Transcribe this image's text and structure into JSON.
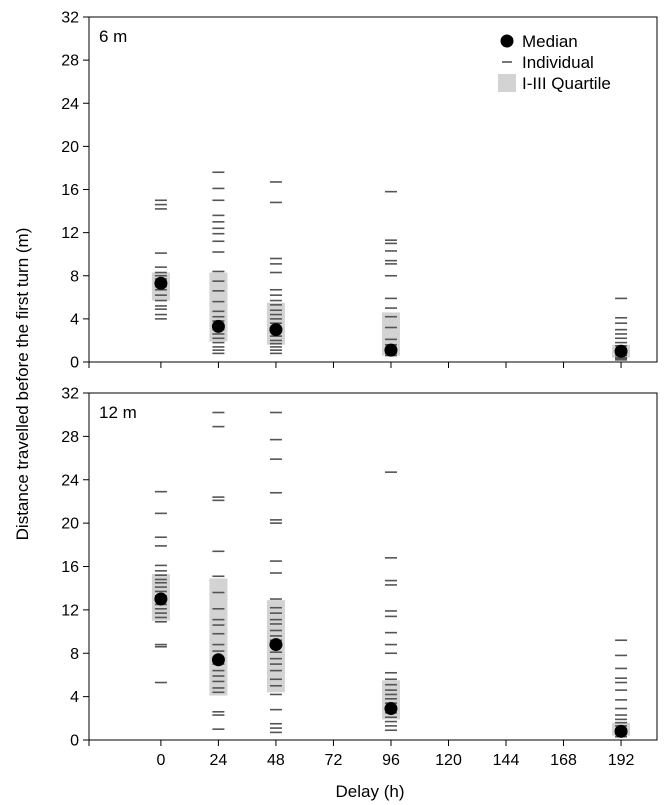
{
  "chart_data": {
    "type": "scatter",
    "xlabel": "Delay (h)",
    "ylabel": "Distance travelled before the first turn (m)",
    "x_ticks": [
      0,
      24,
      48,
      72,
      96,
      120,
      144,
      168,
      192
    ],
    "xlim": [
      -30,
      207
    ],
    "legend": {
      "placement": "top-right",
      "entries": [
        {
          "name": "Median",
          "marker": "filled-circle"
        },
        {
          "name": "Individual",
          "marker": "dash"
        },
        {
          "name": "I-III Quartile",
          "marker": "gray-box"
        }
      ]
    },
    "colors": {
      "median": "#000000",
      "individual": "#555555",
      "quartile": "#d3d3d3"
    },
    "panels": [
      {
        "label": "6 m",
        "ylim": [
          0,
          32
        ],
        "y_ticks": [
          0,
          4,
          8,
          12,
          16,
          20,
          24,
          28,
          32
        ],
        "groups": [
          {
            "x": 0,
            "median": 7.3,
            "q1": 5.7,
            "q3": 8.3,
            "individuals": [
              15.0,
              14.6,
              14.2,
              10.1,
              8.8,
              8.3,
              8.0,
              7.7,
              7.4,
              7.0,
              6.7,
              6.2,
              5.7,
              5.2,
              4.9,
              4.4,
              4.0
            ]
          },
          {
            "x": 24,
            "median": 3.3,
            "q1": 1.9,
            "q3": 8.3,
            "individuals": [
              17.6,
              16.1,
              15.0,
              13.6,
              13.0,
              12.4,
              11.9,
              11.2,
              10.2,
              8.4,
              7.5,
              6.6,
              5.6,
              4.7,
              4.2,
              3.8,
              3.4,
              3.0,
              2.6,
              2.2,
              1.8,
              1.4,
              1.1,
              0.8
            ]
          },
          {
            "x": 48,
            "median": 3.0,
            "q1": 1.6,
            "q3": 5.5,
            "individuals": [
              16.7,
              14.8,
              9.6,
              9.1,
              8.3,
              6.7,
              6.2,
              5.7,
              5.3,
              4.8,
              4.4,
              4.0,
              3.6,
              3.2,
              2.8,
              2.4,
              2.0,
              1.7,
              1.4,
              1.1,
              0.8
            ]
          },
          {
            "x": 96,
            "median": 1.1,
            "q1": 0.6,
            "q3": 4.6,
            "individuals": [
              15.8,
              11.3,
              11.0,
              10.3,
              9.4,
              9.1,
              8.0,
              5.9,
              5.0,
              4.2,
              3.2,
              2.1,
              1.6,
              1.3,
              1.0,
              0.8,
              0.6
            ]
          },
          {
            "x": 192,
            "median": 1.0,
            "q1": 0.4,
            "q3": 1.6,
            "individuals": [
              5.9,
              4.1,
              3.6,
              3.0,
              2.6,
              2.2,
              1.8,
              1.5,
              1.2,
              1.0,
              0.8,
              0.6,
              0.4,
              0.3,
              0.2
            ]
          }
        ]
      },
      {
        "label": "12 m",
        "ylim": [
          0,
          32
        ],
        "y_ticks": [
          0,
          4,
          8,
          12,
          16,
          20,
          24,
          28,
          32
        ],
        "groups": [
          {
            "x": 0,
            "median": 13.0,
            "q1": 11.0,
            "q3": 15.3,
            "individuals": [
              22.9,
              20.9,
              18.7,
              17.9,
              16.1,
              15.6,
              15.2,
              14.8,
              14.5,
              14.1,
              13.7,
              13.3,
              12.9,
              12.5,
              12.1,
              11.7,
              11.3,
              10.9,
              8.8,
              8.6,
              5.3
            ]
          },
          {
            "x": 24,
            "median": 7.4,
            "q1": 4.1,
            "q3": 14.9,
            "individuals": [
              30.2,
              28.9,
              22.4,
              22.1,
              17.4,
              15.1,
              13.6,
              12.1,
              11.1,
              10.6,
              9.8,
              8.8,
              8.2,
              7.6,
              7.0,
              6.4,
              5.9,
              5.4,
              4.8,
              4.4,
              2.6,
              2.3,
              1.0
            ]
          },
          {
            "x": 48,
            "median": 8.8,
            "q1": 4.4,
            "q3": 12.9,
            "individuals": [
              30.2,
              27.7,
              25.9,
              22.8,
              20.3,
              20.0,
              16.5,
              15.4,
              13.0,
              12.2,
              11.7,
              11.1,
              10.7,
              10.1,
              9.6,
              9.2,
              8.7,
              8.1,
              7.5,
              7.0,
              6.4,
              5.6,
              5.0,
              4.2,
              2.8,
              1.5,
              1.1,
              0.7
            ]
          },
          {
            "x": 96,
            "median": 2.9,
            "q1": 1.9,
            "q3": 5.5,
            "individuals": [
              24.7,
              16.8,
              14.7,
              14.3,
              11.9,
              11.4,
              9.9,
              8.8,
              8.0,
              6.2,
              5.6,
              5.1,
              4.6,
              4.2,
              3.8,
              3.4,
              3.0,
              2.5,
              2.1,
              1.7,
              1.3,
              0.9
            ]
          },
          {
            "x": 192,
            "median": 0.8,
            "q1": 0.4,
            "q3": 1.6,
            "individuals": [
              9.2,
              7.8,
              6.6,
              5.7,
              5.3,
              4.6,
              3.7,
              2.9,
              2.3,
              1.9,
              1.6,
              1.3,
              1.0,
              0.7,
              0.5,
              0.3
            ]
          }
        ]
      }
    ]
  }
}
